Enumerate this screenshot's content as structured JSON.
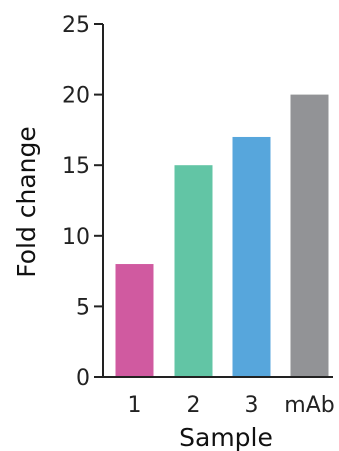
{
  "chart_data": {
    "type": "bar",
    "categories": [
      "1",
      "2",
      "3",
      "mAb"
    ],
    "values": [
      8,
      15,
      17,
      20
    ],
    "colors": [
      "#d05aa0",
      "#62c5a5",
      "#57a6dc",
      "#929396"
    ],
    "xlabel": "Sample",
    "ylabel": "Fold change",
    "ylim": [
      0,
      25
    ],
    "yticks": [
      0,
      5,
      10,
      15,
      20,
      25
    ],
    "grid": false
  }
}
